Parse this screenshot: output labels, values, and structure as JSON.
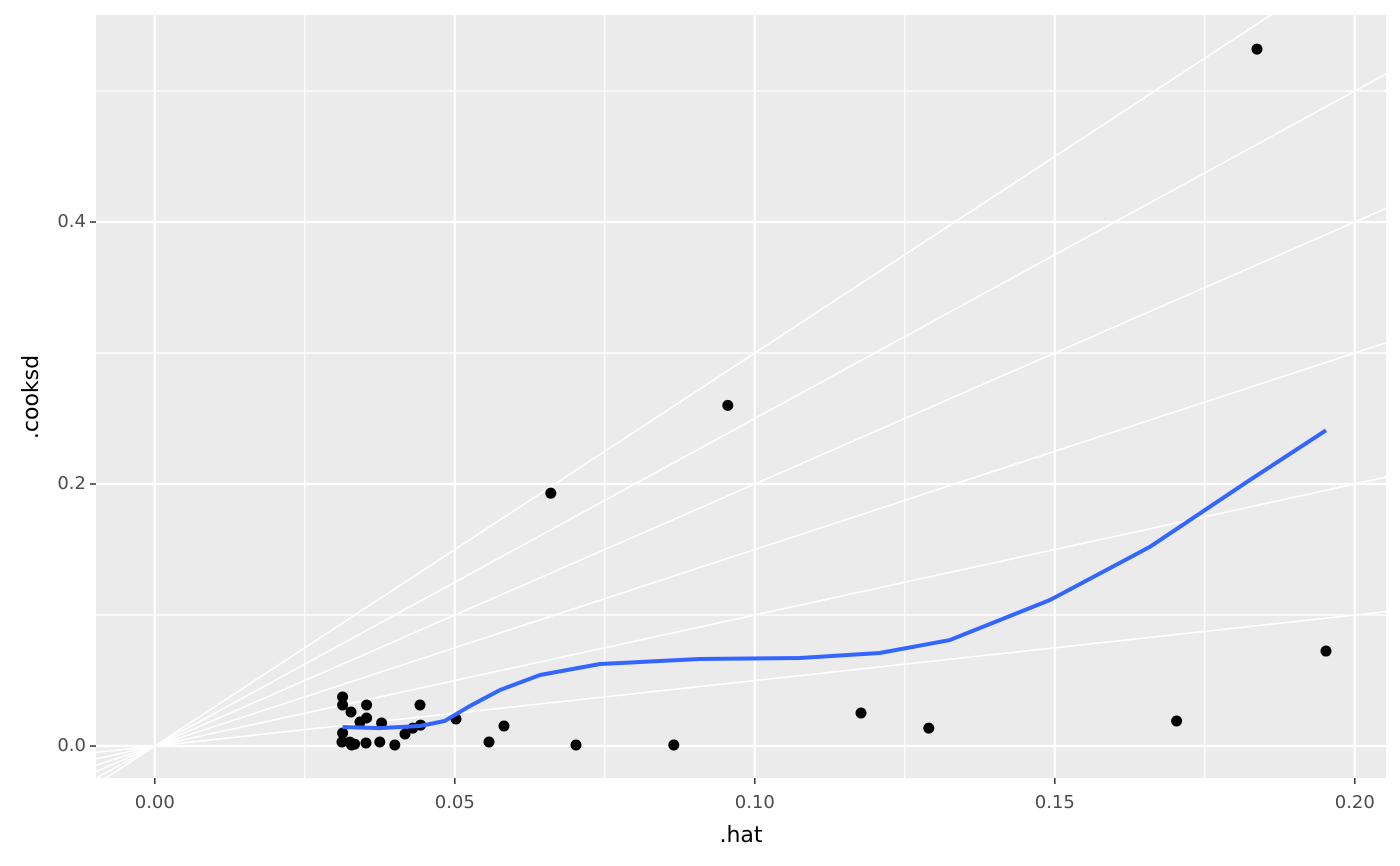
{
  "chart_data": {
    "type": "scatter",
    "x_label": ".hat",
    "y_label": ".cooksd",
    "xlim": [
      -0.0098,
      0.2052
    ],
    "ylim": [
      -0.0244,
      0.558
    ],
    "xticks": [
      {
        "value": 0,
        "label": "0.00"
      },
      {
        "value": 0.05,
        "label": "0.05"
      },
      {
        "value": 0.1,
        "label": "0.10"
      },
      {
        "value": 0.15,
        "label": "0.15"
      },
      {
        "value": 0.2,
        "label": "0.20"
      }
    ],
    "yticks": [
      {
        "value": 0,
        "label": "0.0"
      },
      {
        "value": 0.2,
        "label": "0.2"
      },
      {
        "value": 0.4,
        "label": "0.4"
      }
    ],
    "minor_xticks": [
      0.025,
      0.075,
      0.125,
      0.175
    ],
    "minor_yticks": [
      0.1,
      0.3,
      0.5
    ],
    "grid": true,
    "reference_slopes": [
      0.5,
      1,
      1.5,
      2,
      2.5,
      3
    ],
    "points": {
      "color": "#000000",
      "x": [
        0.0313,
        0.0313,
        0.0313,
        0.0312,
        0.0327,
        0.0325,
        0.0328,
        0.0333,
        0.0342,
        0.0353,
        0.0353,
        0.0352,
        0.0375,
        0.0378,
        0.04,
        0.0417,
        0.043,
        0.0442,
        0.0443,
        0.0502,
        0.0557,
        0.0582,
        0.066,
        0.0702,
        0.0865,
        0.0955,
        0.1177,
        0.129,
        0.1703,
        0.1837,
        0.1952
      ],
      "y": [
        0.0374,
        0.0313,
        0.0099,
        0.0031,
        0.026,
        0.003,
        0.0008,
        0.0015,
        0.0183,
        0.0214,
        0.0313,
        0.0023,
        0.0031,
        0.0176,
        0.0008,
        0.0092,
        0.0137,
        0.0313,
        0.016,
        0.0206,
        0.0031,
        0.0153,
        0.193,
        0.0008,
        0.0008,
        0.26,
        0.0252,
        0.0137,
        0.0191,
        0.532,
        0.0725
      ]
    },
    "smooth": {
      "color": "#3366ff",
      "x": [
        0.0313,
        0.0375,
        0.0442,
        0.0483,
        0.0525,
        0.0575,
        0.0642,
        0.0742,
        0.0908,
        0.1075,
        0.1208,
        0.1325,
        0.1492,
        0.1658,
        0.1825,
        0.1952
      ],
      "y": [
        0.0145,
        0.0137,
        0.0153,
        0.0191,
        0.0305,
        0.0427,
        0.0542,
        0.0626,
        0.0664,
        0.0672,
        0.071,
        0.0809,
        0.1115,
        0.1519,
        0.203,
        0.241
      ]
    }
  }
}
